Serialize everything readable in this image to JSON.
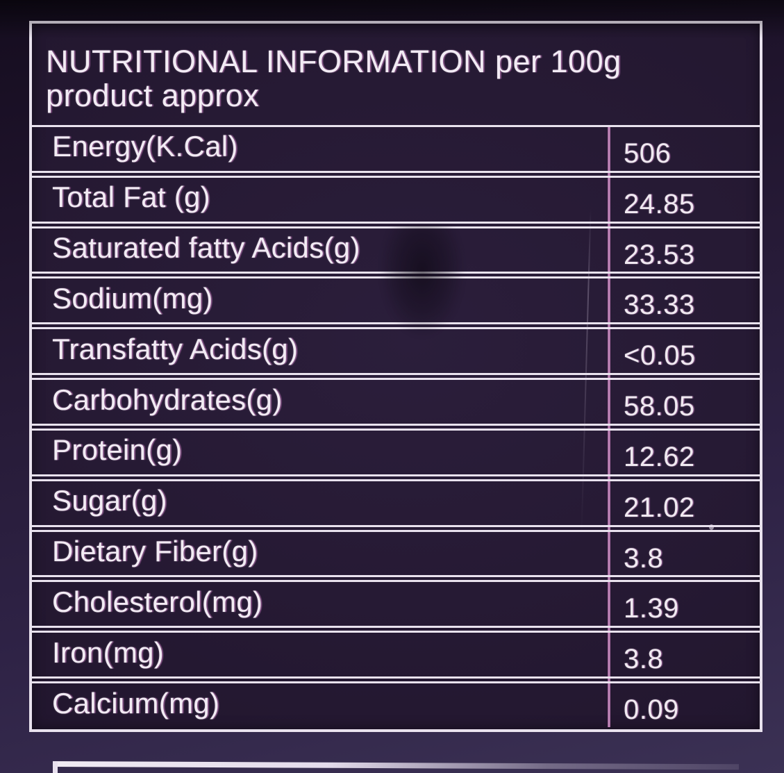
{
  "header": {
    "title_line1": "NUTRITIONAL INFORMATION per 100g",
    "title_line2": "product approx"
  },
  "table": {
    "rows": [
      {
        "label": "Energy(K.Cal)",
        "value": "506"
      },
      {
        "label": "Total Fat (g)",
        "value": "24.85"
      },
      {
        "label": "Saturated fatty Acids(g)",
        "value": "23.53"
      },
      {
        "label": "Sodium(mg)",
        "value": "33.33"
      },
      {
        "label": "Transfatty Acids(g)",
        "value": "<0.05"
      },
      {
        "label": "Carbohydrates(g)",
        "value": "58.05"
      },
      {
        "label": "Protein(g)",
        "value": "12.62"
      },
      {
        "label": "Sugar(g)",
        "value": "21.02"
      },
      {
        "label": "Dietary Fiber(g)",
        "value": "3.8"
      },
      {
        "label": "Cholesterol(mg)",
        "value": "1.39"
      },
      {
        "label": "Iron(mg)",
        "value": "3.8"
      },
      {
        "label": "Calcium(mg)",
        "value": "0.09"
      }
    ]
  },
  "colors": {
    "bg_top": "#150d1f",
    "bg_mid": "#261a36",
    "bg_bottom": "#3b3154",
    "cell_bg": "#241831",
    "line_white": "#e9e2ee",
    "divider_pink": "#c795c1",
    "text_main": "#f2ebf4"
  }
}
